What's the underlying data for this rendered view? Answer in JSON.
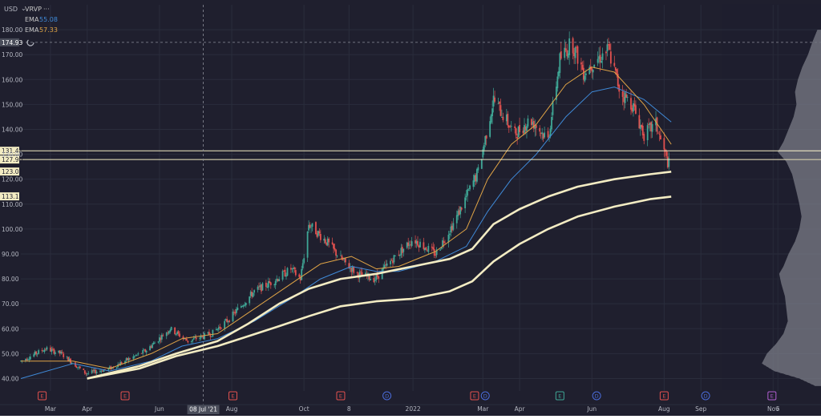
{
  "header": {
    "currency": "USD",
    "currency_caret": "⌄",
    "indicators": [
      {
        "label": "VRVP",
        "value": "···",
        "color": "#c7c7c7"
      },
      {
        "label": "EMA",
        "value": "55.08",
        "color": "#3f8ad8"
      },
      {
        "label": "EMA",
        "value": "57.33",
        "color": "#e0a446"
      }
    ]
  },
  "colors": {
    "background": "#1f1f2e",
    "grid": "#2a2d3c",
    "axis_text": "#b4b7c1",
    "candle_up": "#3fa796",
    "candle_down": "#e2514f",
    "ema_short": "#e0a446",
    "ema_long": "#3f8ad8",
    "avwap": "#f3ecc3",
    "level": "#f3ecc3",
    "event_earnings": "#e2514f",
    "event_dividend": "#4a6bd8",
    "event_split": "#3fa796",
    "event_future": "#b05fd1"
  },
  "chart_data": {
    "type": "candlestick",
    "y_ticks": [
      40,
      50,
      60,
      70,
      80,
      90,
      100,
      110,
      120,
      130,
      140,
      150,
      160,
      170,
      180
    ],
    "y_tick_labels": [
      "40.00",
      "50.00",
      "60.00",
      "70.00",
      "80.00",
      "90.00",
      "100.00",
      "110.00",
      "120.00",
      "130.00",
      "140.00",
      "150.00",
      "160.00",
      "170.00",
      "180.00"
    ],
    "ylim": [
      35,
      190
    ],
    "x_start": "2021-02-04",
    "x_end": "2022-11-15",
    "x_ticks": [
      {
        "date": "2021-03-01",
        "label": "Mar"
      },
      {
        "date": "2021-04-01",
        "label": "Apr"
      },
      {
        "date": "2021-06-01",
        "label": "Jun"
      },
      {
        "date": "2021-08-01",
        "label": "Aug"
      },
      {
        "date": "2021-10-01",
        "label": "Oct"
      },
      {
        "date": "2021-11-08",
        "label": "8"
      },
      {
        "date": "2022-01-01",
        "label": "2022"
      },
      {
        "date": "2022-03-01",
        "label": "Mar"
      },
      {
        "date": "2022-04-01",
        "label": "Apr"
      },
      {
        "date": "2022-06-01",
        "label": "Jun"
      },
      {
        "date": "2022-08-01",
        "label": "Aug"
      },
      {
        "date": "2022-09-01",
        "label": "Sep"
      },
      {
        "date": "2022-11-01",
        "label": "Nov"
      },
      {
        "date": "2022-11-05",
        "label": "5"
      }
    ],
    "crosshair": {
      "date": "2021-07-08",
      "label": "08 Jul '21",
      "price": 174.93,
      "price_label": "174.93"
    },
    "levels": [
      {
        "value": 131.41,
        "label": "131.41"
      },
      {
        "value": 127.9,
        "label": "127.90"
      }
    ],
    "price_labels": [
      {
        "value": 123.08,
        "label": "123.08"
      },
      {
        "value": 113.11,
        "label": "113.11"
      }
    ],
    "price_path": [
      [
        "2021-02-04",
        47
      ],
      [
        "2021-02-25",
        52
      ],
      [
        "2021-03-10",
        50
      ],
      [
        "2021-03-31",
        42
      ],
      [
        "2021-04-20",
        44
      ],
      [
        "2021-05-20",
        51
      ],
      [
        "2021-06-10",
        60
      ],
      [
        "2021-06-25",
        55
      ],
      [
        "2021-07-15",
        58
      ],
      [
        "2021-07-30",
        64
      ],
      [
        "2021-08-20",
        75
      ],
      [
        "2021-09-05",
        79
      ],
      [
        "2021-09-20",
        84
      ],
      [
        "2021-09-28",
        80
      ],
      [
        "2021-10-05",
        102
      ],
      [
        "2021-10-20",
        95
      ],
      [
        "2021-11-01",
        88
      ],
      [
        "2021-11-15",
        82
      ],
      [
        "2021-11-30",
        80
      ],
      [
        "2021-12-15",
        88
      ],
      [
        "2022-01-01",
        96
      ],
      [
        "2022-01-20",
        90
      ],
      [
        "2022-02-05",
        103
      ],
      [
        "2022-02-25",
        123
      ],
      [
        "2022-03-10",
        152
      ],
      [
        "2022-03-28",
        138
      ],
      [
        "2022-04-10",
        144
      ],
      [
        "2022-04-25",
        136
      ],
      [
        "2022-05-05",
        168
      ],
      [
        "2022-05-15",
        175
      ],
      [
        "2022-05-25",
        163
      ],
      [
        "2022-06-05",
        168
      ],
      [
        "2022-06-15",
        172
      ],
      [
        "2022-06-25",
        155
      ],
      [
        "2022-07-05",
        150
      ],
      [
        "2022-07-15",
        138
      ],
      [
        "2022-07-25",
        142
      ],
      [
        "2022-08-03",
        128
      ],
      [
        "2022-08-07",
        124
      ]
    ],
    "ema_short": [
      [
        "2021-02-04",
        47
      ],
      [
        "2021-03-20",
        47
      ],
      [
        "2021-04-20",
        44
      ],
      [
        "2021-05-25",
        50
      ],
      [
        "2021-06-20",
        56
      ],
      [
        "2021-07-20",
        58
      ],
      [
        "2021-08-20",
        68
      ],
      [
        "2021-09-20",
        78
      ],
      [
        "2021-10-15",
        86
      ],
      [
        "2021-11-10",
        89
      ],
      [
        "2021-12-01",
        84
      ],
      [
        "2021-12-20",
        85
      ],
      [
        "2022-01-20",
        91
      ],
      [
        "2022-02-15",
        100
      ],
      [
        "2022-03-05",
        120
      ],
      [
        "2022-03-25",
        134
      ],
      [
        "2022-04-15",
        142
      ],
      [
        "2022-05-10",
        158
      ],
      [
        "2022-06-01",
        165
      ],
      [
        "2022-06-20",
        163
      ],
      [
        "2022-07-15",
        150
      ],
      [
        "2022-08-07",
        134
      ]
    ],
    "ema_long": [
      [
        "2021-02-04",
        40
      ],
      [
        "2021-03-20",
        46
      ],
      [
        "2021-04-20",
        43
      ],
      [
        "2021-05-25",
        47
      ],
      [
        "2021-06-20",
        53
      ],
      [
        "2021-07-20",
        56
      ],
      [
        "2021-08-20",
        63
      ],
      [
        "2021-09-20",
        72
      ],
      [
        "2021-10-15",
        80
      ],
      [
        "2021-11-10",
        85
      ],
      [
        "2021-12-01",
        83
      ],
      [
        "2021-12-20",
        83
      ],
      [
        "2022-01-20",
        87
      ],
      [
        "2022-02-15",
        93
      ],
      [
        "2022-03-05",
        107
      ],
      [
        "2022-03-25",
        120
      ],
      [
        "2022-04-15",
        130
      ],
      [
        "2022-05-10",
        145
      ],
      [
        "2022-06-01",
        155
      ],
      [
        "2022-06-20",
        157
      ],
      [
        "2022-07-15",
        152
      ],
      [
        "2022-08-07",
        143
      ]
    ],
    "avwap_upper": [
      [
        "2021-04-01",
        40
      ],
      [
        "2021-05-15",
        45
      ],
      [
        "2021-06-15",
        50
      ],
      [
        "2021-07-20",
        55
      ],
      [
        "2021-08-15",
        62
      ],
      [
        "2021-09-10",
        70
      ],
      [
        "2021-10-05",
        76
      ],
      [
        "2021-11-01",
        80
      ],
      [
        "2021-12-01",
        82
      ],
      [
        "2022-01-01",
        85
      ],
      [
        "2022-02-01",
        88
      ],
      [
        "2022-02-20",
        92
      ],
      [
        "2022-03-10",
        102
      ],
      [
        "2022-04-01",
        108
      ],
      [
        "2022-04-25",
        113
      ],
      [
        "2022-05-20",
        117
      ],
      [
        "2022-06-20",
        120
      ],
      [
        "2022-07-20",
        122
      ],
      [
        "2022-08-07",
        123
      ]
    ],
    "avwap_lower": [
      [
        "2021-04-01",
        40
      ],
      [
        "2021-05-15",
        44
      ],
      [
        "2021-06-15",
        49
      ],
      [
        "2021-07-20",
        53
      ],
      [
        "2021-08-15",
        57
      ],
      [
        "2021-09-10",
        61
      ],
      [
        "2021-10-05",
        65
      ],
      [
        "2021-11-01",
        69
      ],
      [
        "2021-12-01",
        71
      ],
      [
        "2022-01-01",
        72
      ],
      [
        "2022-02-01",
        75
      ],
      [
        "2022-02-20",
        79
      ],
      [
        "2022-03-10",
        87
      ],
      [
        "2022-04-01",
        94
      ],
      [
        "2022-04-25",
        100
      ],
      [
        "2022-05-20",
        105
      ],
      [
        "2022-06-20",
        109
      ],
      [
        "2022-07-20",
        112
      ],
      [
        "2022-08-07",
        113
      ]
    ],
    "volume_profile": [
      [
        180,
        0.05
      ],
      [
        175,
        0.12
      ],
      [
        170,
        0.18
      ],
      [
        165,
        0.26
      ],
      [
        160,
        0.32
      ],
      [
        155,
        0.36
      ],
      [
        150,
        0.34
      ],
      [
        145,
        0.38
      ],
      [
        140,
        0.45
      ],
      [
        135,
        0.52
      ],
      [
        131,
        0.6
      ],
      [
        127,
        0.48
      ],
      [
        122,
        0.4
      ],
      [
        115,
        0.34
      ],
      [
        110,
        0.3
      ],
      [
        105,
        0.27
      ],
      [
        100,
        0.3
      ],
      [
        95,
        0.36
      ],
      [
        90,
        0.45
      ],
      [
        85,
        0.52
      ],
      [
        82,
        0.58
      ],
      [
        78,
        0.55
      ],
      [
        73,
        0.5
      ],
      [
        68,
        0.48
      ],
      [
        63,
        0.46
      ],
      [
        58,
        0.52
      ],
      [
        54,
        0.62
      ],
      [
        50,
        0.75
      ],
      [
        46,
        0.82
      ],
      [
        43,
        0.65
      ],
      [
        40,
        0.3
      ],
      [
        37,
        0.08
      ]
    ],
    "events": [
      {
        "date": "2021-02-22",
        "type": "E"
      },
      {
        "date": "2021-05-03",
        "type": "E"
      },
      {
        "date": "2021-08-02",
        "type": "E"
      },
      {
        "date": "2021-11-01",
        "type": "E"
      },
      {
        "date": "2021-12-10",
        "type": "D"
      },
      {
        "date": "2022-02-22",
        "type": "E"
      },
      {
        "date": "2022-03-03",
        "type": "D"
      },
      {
        "date": "2022-05-05",
        "type": "E"
      },
      {
        "date": "2022-06-05",
        "type": "D"
      },
      {
        "date": "2022-08-01",
        "type": "E"
      },
      {
        "date": "2022-09-05",
        "type": "D"
      },
      {
        "date": "2022-10-31",
        "type": "E"
      }
    ]
  }
}
